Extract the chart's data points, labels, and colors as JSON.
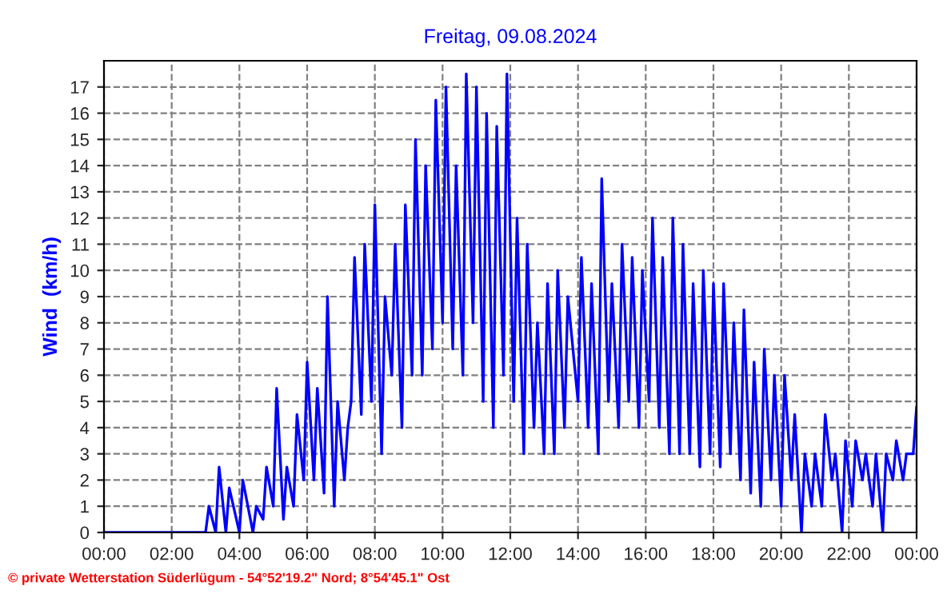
{
  "chart_data": {
    "type": "line",
    "title": "Freitag, 09.08.2024",
    "ylabel": "Wind  (km/h)",
    "annotations": [
      "© private Wetterstation Süderlügum - 54°52'19.2\" Nord; 8°54'45.1\" Ost"
    ],
    "xlim": [
      0,
      24
    ],
    "xticks": [
      {
        "value": 0,
        "label": "00:00"
      },
      {
        "value": 2,
        "label": "02:00"
      },
      {
        "value": 4,
        "label": "04:00"
      },
      {
        "value": 6,
        "label": "06:00"
      },
      {
        "value": 8,
        "label": "08:00"
      },
      {
        "value": 10,
        "label": "10:00"
      },
      {
        "value": 12,
        "label": "12:00"
      },
      {
        "value": 14,
        "label": "14:00"
      },
      {
        "value": 16,
        "label": "16:00"
      },
      {
        "value": 18,
        "label": "18:00"
      },
      {
        "value": 20,
        "label": "20:00"
      },
      {
        "value": 22,
        "label": "22:00"
      },
      {
        "value": 24,
        "label": "00:00"
      }
    ],
    "ylim": [
      0,
      18
    ],
    "yticks": [
      0,
      1,
      2,
      3,
      4,
      5,
      6,
      7,
      8,
      9,
      10,
      11,
      12,
      13,
      14,
      15,
      16,
      17
    ],
    "grid": true,
    "line_style": "solid",
    "series": [
      {
        "color": "#0000ff",
        "x": [
          0,
          2.7,
          3.0,
          3.1,
          3.3,
          3.4,
          3.6,
          3.7,
          4.0,
          4.1,
          4.4,
          4.5,
          4.7,
          4.8,
          5.0,
          5.1,
          5.3,
          5.4,
          5.6,
          5.7,
          5.9,
          6.0,
          6.2,
          6.3,
          6.5,
          6.6,
          6.8,
          6.9,
          7.1,
          7.2,
          7.3,
          7.4,
          7.6,
          7.7,
          7.9,
          8.0,
          8.2,
          8.3,
          8.5,
          8.6,
          8.8,
          8.9,
          9.1,
          9.2,
          9.4,
          9.5,
          9.7,
          9.8,
          10.0,
          10.1,
          10.3,
          10.4,
          10.6,
          10.7,
          10.9,
          11.0,
          11.2,
          11.3,
          11.5,
          11.6,
          11.8,
          11.9,
          12.1,
          12.2,
          12.4,
          12.5,
          12.7,
          12.8,
          13.0,
          13.1,
          13.3,
          13.4,
          13.6,
          13.7,
          14.0,
          14.1,
          14.3,
          14.4,
          14.6,
          14.7,
          14.9,
          15.0,
          15.2,
          15.3,
          15.5,
          15.6,
          15.8,
          15.9,
          16.1,
          16.2,
          16.4,
          16.5,
          16.7,
          16.8,
          17.0,
          17.1,
          17.3,
          17.4,
          17.6,
          17.7,
          17.9,
          18.0,
          18.2,
          18.3,
          18.5,
          18.6,
          18.8,
          18.9,
          19.1,
          19.2,
          19.4,
          19.5,
          19.7,
          19.8,
          20.0,
          20.1,
          20.3,
          20.4,
          20.6,
          20.7,
          20.9,
          21.0,
          21.2,
          21.3,
          21.5,
          21.6,
          21.8,
          21.9,
          22.1,
          22.2,
          22.4,
          22.5,
          22.7,
          22.8,
          23.0,
          23.1,
          23.3,
          23.4,
          23.6,
          23.7,
          23.9,
          24.0
        ],
        "values": [
          0,
          0,
          0,
          1,
          0,
          2.5,
          0,
          1.7,
          0,
          2,
          0,
          1,
          0.5,
          2.5,
          1,
          5.5,
          0.5,
          2.5,
          1,
          4.5,
          2,
          6.5,
          2,
          5.5,
          1.5,
          9,
          1,
          5,
          2,
          4,
          5,
          10.5,
          4.5,
          11,
          5,
          12.5,
          3,
          9,
          6,
          11,
          4,
          12.5,
          6,
          15,
          6,
          14,
          7,
          16.5,
          8,
          17,
          7,
          14,
          6,
          17.5,
          8,
          17,
          5,
          16,
          4,
          15.5,
          6,
          17.5,
          5,
          12,
          3,
          11,
          4,
          8,
          3,
          9.5,
          3,
          10,
          4,
          9,
          5,
          10.5,
          4,
          9.5,
          3,
          13.5,
          5,
          9.5,
          4,
          11,
          5,
          10.5,
          4,
          10,
          5,
          12,
          4,
          10.5,
          3,
          12,
          3,
          11,
          3,
          9.5,
          2.5,
          10,
          3,
          9.5,
          2.5,
          9.5,
          3,
          8,
          2,
          8.5,
          1.5,
          6.5,
          1,
          7,
          2,
          6,
          1,
          6,
          2,
          4.5,
          0,
          3,
          1,
          3,
          1,
          4.5,
          2,
          3,
          0,
          3.5,
          1,
          3.5,
          2,
          3,
          1,
          3,
          0,
          3,
          2,
          3.5,
          2,
          3,
          3,
          4.8
        ]
      }
    ]
  }
}
